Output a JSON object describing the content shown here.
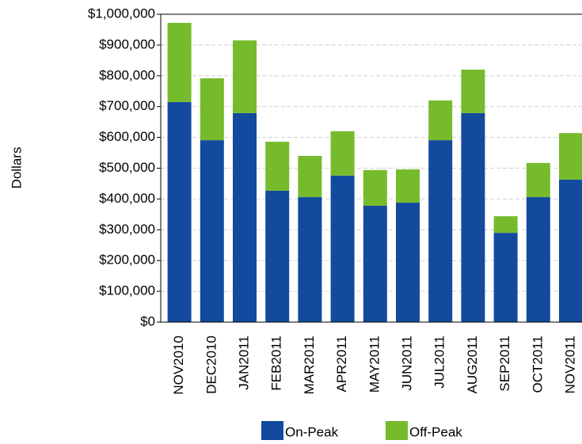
{
  "chart_data": {
    "type": "bar",
    "stacked": true,
    "y_label": "Dollars",
    "categories": [
      "NOV2010",
      "DEC2010",
      "JAN2011",
      "FEB2011",
      "MAR2011",
      "APR2011",
      "MAY2011",
      "JUN2011",
      "JUL2011",
      "AUG2011",
      "SEP2011",
      "OCT2011",
      "NOV2011"
    ],
    "series": [
      {
        "name": "On-Peak",
        "color": "#134a9e",
        "values": [
          715000,
          591000,
          679000,
          427000,
          406000,
          476000,
          378000,
          388000,
          591000,
          679000,
          290000,
          406000,
          463000
        ]
      },
      {
        "name": "Off-Peak",
        "color": "#76bb2c",
        "values": [
          257000,
          201000,
          236000,
          159000,
          134000,
          144000,
          116000,
          108000,
          129000,
          141000,
          54000,
          111000,
          151000
        ]
      }
    ],
    "ylim": [
      0,
      1000000
    ],
    "yticks": [
      {
        "value": 0,
        "label": "$0"
      },
      {
        "value": 100000,
        "label": "$100,000"
      },
      {
        "value": 200000,
        "label": "$200,000"
      },
      {
        "value": 300000,
        "label": "$300,000"
      },
      {
        "value": 400000,
        "label": "$400,000"
      },
      {
        "value": 500000,
        "label": "$500,000"
      },
      {
        "value": 600000,
        "label": "$600,000"
      },
      {
        "value": 700000,
        "label": "$700,000"
      },
      {
        "value": 800000,
        "label": "$800,000"
      },
      {
        "value": 900000,
        "label": "$900,000"
      },
      {
        "value": 1000000,
        "label": "$1,000,000"
      }
    ],
    "grid": true,
    "legend": "bottom"
  }
}
